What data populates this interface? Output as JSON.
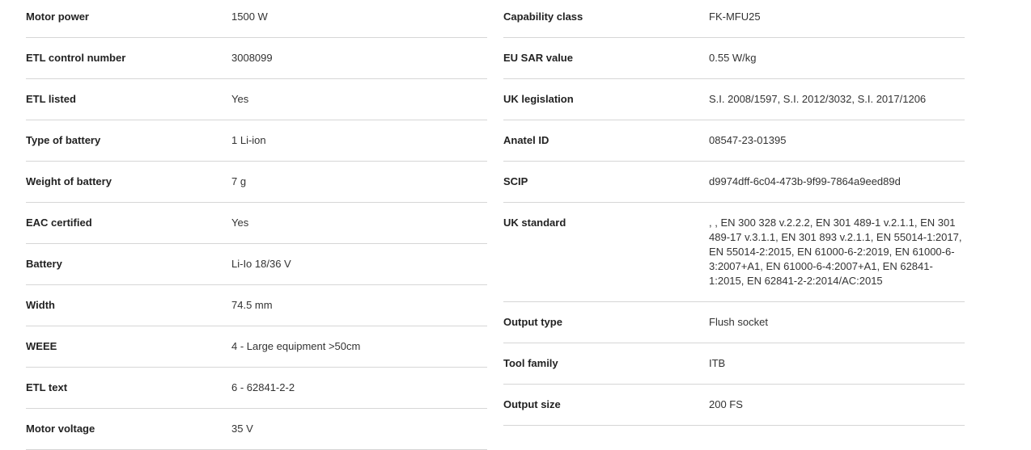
{
  "left": [
    {
      "label": "Motor power",
      "value": "1500 W"
    },
    {
      "label": "ETL control number",
      "value": "3008099"
    },
    {
      "label": "ETL listed",
      "value": "Yes"
    },
    {
      "label": "Type of battery",
      "value": "1 Li-ion"
    },
    {
      "label": "Weight of battery",
      "value": "7 g"
    },
    {
      "label": "EAC certified",
      "value": "Yes"
    },
    {
      "label": "Battery",
      "value": "Li-Io 18/36 V"
    },
    {
      "label": "Width",
      "value": "74.5 mm"
    },
    {
      "label": "WEEE",
      "value": "4 - Large equipment >50cm"
    },
    {
      "label": "ETL text",
      "value": "6 - 62841-2-2"
    },
    {
      "label": "Motor voltage",
      "value": "35 V"
    }
  ],
  "right": [
    {
      "label": "Capability class",
      "value": "FK-MFU25"
    },
    {
      "label": "EU SAR value",
      "value": "0.55 W/kg"
    },
    {
      "label": "UK legislation",
      "value": "S.I. 2008/1597, S.I. 2012/3032, S.I. 2017/1206"
    },
    {
      "label": "Anatel ID",
      "value": "08547-23-01395"
    },
    {
      "label": "SCIP",
      "value": "d9974dff-6c04-473b-9f99-7864a9eed89d"
    },
    {
      "label": "UK standard",
      "value": ", , EN 300 328 v.2.2.2, EN 301 489-1 v.2.1.1, EN 301 489-17 v.3.1.1, EN 301 893 v.2.1.1, EN 55014-1:2017, EN 55014-2:2015, EN 61000-6-2:2019, EN 61000-6-3:2007+A1, EN 61000-6-4:2007+A1, EN 62841-1:2015, EN 62841-2-2:2014/AC:2015"
    },
    {
      "label": "Output type",
      "value": "Flush socket"
    },
    {
      "label": "Tool family",
      "value": "ITB"
    },
    {
      "label": "Output size",
      "value": "200 FS"
    }
  ]
}
